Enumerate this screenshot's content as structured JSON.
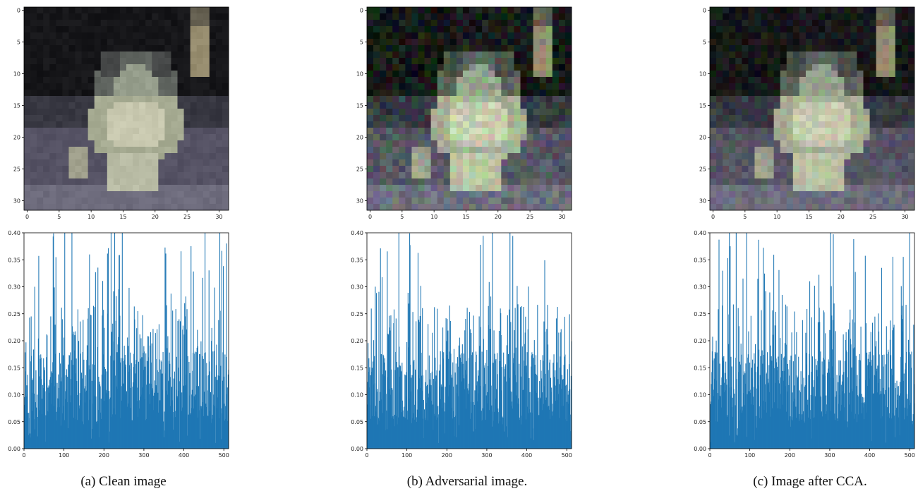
{
  "figure": {
    "captions": [
      "(a) Clean image",
      "(b) Adversarial image.",
      "(c) Image after CCA."
    ]
  },
  "chart_data": [
    {
      "type": "heatmap",
      "title": "",
      "description_pixels": "32x32 RGB image (CIFAR-style cat), clean",
      "xticks": [
        0,
        5,
        10,
        15,
        20,
        25,
        30
      ],
      "yticks": [
        0,
        5,
        10,
        15,
        20,
        25,
        30
      ],
      "xlim": [
        -0.5,
        31.5
      ],
      "ylim": [
        31.5,
        -0.5
      ],
      "variant": "clean"
    },
    {
      "type": "bar",
      "title": "",
      "xticks": [
        0,
        100,
        200,
        300,
        400,
        500
      ],
      "yticks": [
        0.0,
        0.05,
        0.1,
        0.15,
        0.2,
        0.25,
        0.3,
        0.35,
        0.4
      ],
      "xlim": [
        0,
        512
      ],
      "ylim": [
        0,
        0.4
      ],
      "color": "#1f77b4",
      "n_bars": 512,
      "value_range": [
        0.0,
        0.4
      ],
      "seed": 11
    },
    {
      "type": "heatmap",
      "title": "",
      "description_pixels": "32x32 RGB image (CIFAR-style cat), adversarial",
      "xticks": [
        0,
        5,
        10,
        15,
        20,
        25,
        30
      ],
      "yticks": [
        0,
        5,
        10,
        15,
        20,
        25,
        30
      ],
      "xlim": [
        -0.5,
        31.5
      ],
      "ylim": [
        31.5,
        -0.5
      ],
      "variant": "adversarial"
    },
    {
      "type": "bar",
      "title": "",
      "xticks": [
        0,
        100,
        200,
        300,
        400,
        500
      ],
      "yticks": [
        0.0,
        0.05,
        0.1,
        0.15,
        0.2,
        0.25,
        0.3,
        0.35,
        0.4
      ],
      "xlim": [
        0,
        512
      ],
      "ylim": [
        0,
        0.4
      ],
      "color": "#1f77b4",
      "n_bars": 512,
      "value_range": [
        0.0,
        0.4
      ],
      "seed": 23
    },
    {
      "type": "heatmap",
      "title": "",
      "description_pixels": "32x32 RGB image (CIFAR-style cat), after CCA",
      "xticks": [
        0,
        5,
        10,
        15,
        20,
        25,
        30
      ],
      "yticks": [
        0,
        5,
        10,
        15,
        20,
        25,
        30
      ],
      "xlim": [
        -0.5,
        31.5
      ],
      "ylim": [
        31.5,
        -0.5
      ],
      "variant": "cca"
    },
    {
      "type": "bar",
      "title": "",
      "xticks": [
        0,
        100,
        200,
        300,
        400,
        500
      ],
      "yticks": [
        0.0,
        0.05,
        0.1,
        0.15,
        0.2,
        0.25,
        0.3,
        0.35,
        0.4
      ],
      "xlim": [
        0,
        512
      ],
      "ylim": [
        0,
        0.4
      ],
      "color": "#1f77b4",
      "n_bars": 512,
      "value_range": [
        0.0,
        0.4
      ],
      "seed": 37
    }
  ]
}
